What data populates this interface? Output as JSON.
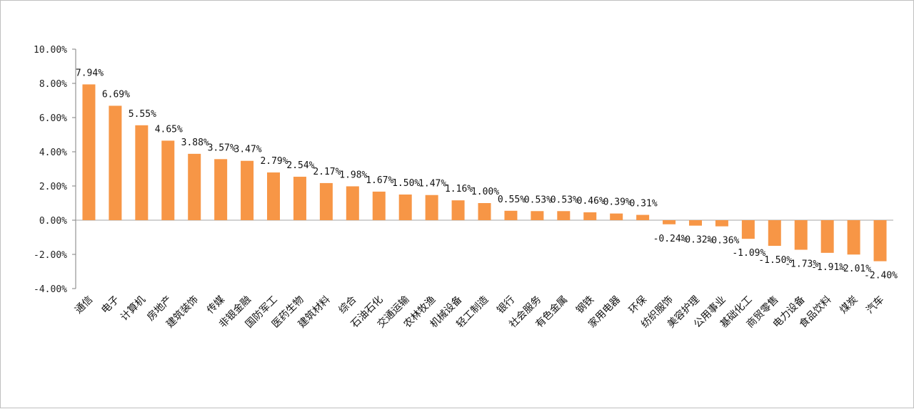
{
  "chart_data": {
    "type": "bar",
    "title": "",
    "xlabel": "",
    "ylabel": "",
    "ylim": [
      -4,
      10
    ],
    "yticks": [
      10,
      8,
      6,
      4,
      2,
      0,
      -2,
      -4
    ],
    "ytick_labels": [
      "10.00%",
      "8.00%",
      "6.00%",
      "4.00%",
      "2.00%",
      "0.00%",
      "-2.00%",
      "-4.00%"
    ],
    "bar_color": "#f79646",
    "grid": false,
    "legend": "none",
    "categories": [
      "通信",
      "电子",
      "计算机",
      "房地产",
      "建筑装饰",
      "传媒",
      "非银金融",
      "国防军工",
      "医药生物",
      "建筑材料",
      "综合",
      "石油石化",
      "交通运输",
      "农林牧渔",
      "机械设备",
      "轻工制造",
      "银行",
      "社会服务",
      "有色金属",
      "钢铁",
      "家用电器",
      "环保",
      "纺织服饰",
      "美容护理",
      "公用事业",
      "基础化工",
      "商贸零售",
      "电力设备",
      "食品饮料",
      "煤炭",
      "汽车"
    ],
    "values": [
      7.94,
      6.69,
      5.55,
      4.65,
      3.88,
      3.57,
      3.47,
      2.79,
      2.54,
      2.17,
      1.98,
      1.67,
      1.5,
      1.47,
      1.16,
      1.0,
      0.55,
      0.53,
      0.53,
      0.46,
      0.39,
      0.31,
      -0.24,
      -0.32,
      -0.36,
      -1.09,
      -1.5,
      -1.73,
      -1.91,
      -2.01,
      -2.4
    ],
    "data_labels": [
      "7.94%",
      "6.69%",
      "5.55%",
      "4.65%",
      "3.88%",
      "3.57%",
      "3.47%",
      "2.79%",
      "2.54%",
      "2.17%",
      "1.98%",
      "1.67%",
      "1.50%",
      "1.47%",
      "1.16%",
      "1.00%",
      "0.55%",
      "0.53%",
      "0.53%",
      "0.46%",
      "0.39%",
      "0.31%",
      "-0.24%",
      "-0.32%",
      "-0.36%",
      "-1.09%",
      "-1.50%",
      "-1.73%",
      "-1.91%",
      "-2.01%",
      "-2.40%"
    ]
  }
}
